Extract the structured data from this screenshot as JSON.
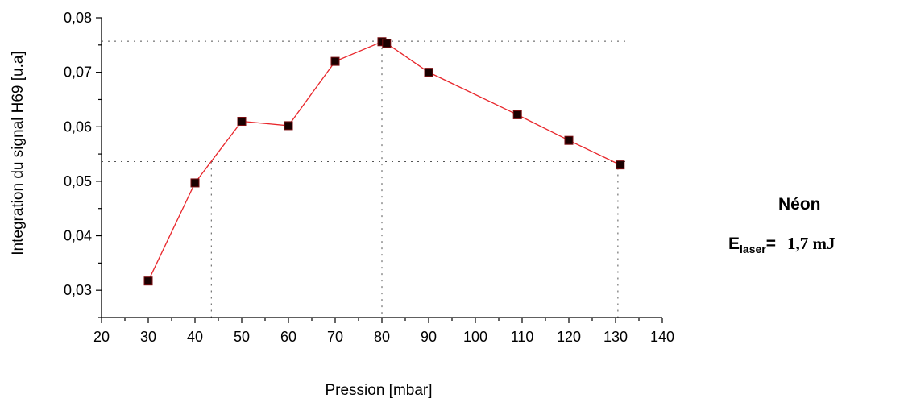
{
  "chart_data": {
    "type": "line",
    "xlabel": "Pression  [mbar]",
    "ylabel": "Integration du signal H69 [u.a]",
    "xlim": [
      20,
      140
    ],
    "ylim": [
      0.025,
      0.08
    ],
    "xticks": [
      "20",
      "30",
      "40",
      "50",
      "60",
      "70",
      "80",
      "90",
      "100",
      "110",
      "120",
      "130",
      "140"
    ],
    "yticks": [
      "0,03",
      "0,04",
      "0,05",
      "0,06",
      "0,07",
      "0,08"
    ],
    "series": [
      {
        "x": [
          30,
          40,
          50,
          60,
          70,
          80,
          81,
          90,
          109,
          120,
          131
        ],
        "y": [
          0.0317,
          0.0497,
          0.061,
          0.0602,
          0.072,
          0.0756,
          0.0753,
          0.07,
          0.0622,
          0.0575,
          0.053
        ],
        "color": "#e8262b",
        "marker": "square"
      }
    ],
    "reference_lines": {
      "horizontal": [
        0.0757,
        0.0536
      ],
      "vertical": [
        43.5,
        80,
        130.5
      ]
    },
    "grid": false
  },
  "legend": {
    "title": "Néon",
    "energy_symbol": "E",
    "energy_subscript": "laser",
    "energy_equals": "=",
    "energy_value": "1,7 mJ"
  }
}
